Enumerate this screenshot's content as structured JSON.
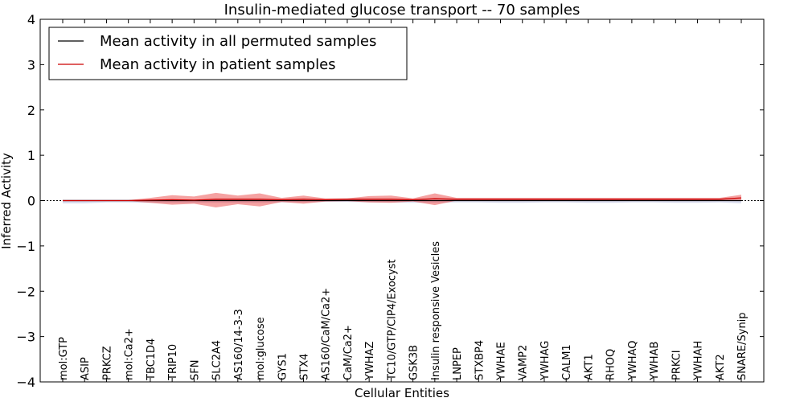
{
  "chart_data": {
    "type": "line",
    "title": "Insulin-mediated glucose transport -- 70 samples",
    "xlabel": "Cellular Entities",
    "ylabel": "Inferred Activity",
    "ylim": [
      -4,
      4
    ],
    "yticks": [
      4,
      3,
      2,
      1,
      0,
      -1,
      -2,
      -3,
      -4
    ],
    "ytick_labels": [
      "4",
      "3",
      "2",
      "1",
      "0",
      "−1",
      "−2",
      "−3",
      "−4"
    ],
    "categories": [
      "mol:GTP",
      "ASIP",
      "PRKCZ",
      "mol:Ca2+",
      "TBC1D4",
      "TRIP10",
      "SFN",
      "SLC2A4",
      "AS160/14-3-3",
      "mol:glucose",
      "GYS1",
      "STX4",
      "AS160/CaM/Ca2+",
      "CaM/Ca2+",
      "YWHAZ",
      "TC10/GTP/CIP4/Exocyst",
      "GSK3B",
      "Insulin responsive Vesicles",
      "LNPEP",
      "STXBP4",
      "YWHAE",
      "VAMP2",
      "YWHAG",
      "CALM1",
      "AKT1",
      "RHOQ",
      "YWHAQ",
      "YWHAB",
      "PRKCI",
      "YWHAH",
      "AKT2",
      "SNARE/Synip"
    ],
    "legend_position": "top-left",
    "series": [
      {
        "name": "Mean activity in all permuted samples",
        "color": "#000000",
        "values": [
          0,
          0,
          0,
          0,
          0,
          0,
          0,
          0,
          0,
          0,
          0,
          0,
          0,
          0,
          0,
          0,
          0,
          0,
          0,
          0,
          0,
          0,
          0,
          0,
          0,
          0,
          0,
          0,
          0,
          0,
          0,
          0
        ],
        "band_upper": [
          0.02,
          0.02,
          0.02,
          0.02,
          0.02,
          0.02,
          0.02,
          0.02,
          0.02,
          0.02,
          0.02,
          0.02,
          0.02,
          0.02,
          0.02,
          0.02,
          0.02,
          0.02,
          0.02,
          0.02,
          0.02,
          0.02,
          0.02,
          0.02,
          0.02,
          0.02,
          0.02,
          0.02,
          0.02,
          0.02,
          0.02,
          0.02
        ],
        "band_lower": [
          -0.06,
          -0.06,
          -0.04,
          -0.04,
          -0.05,
          -0.05,
          -0.05,
          -0.05,
          -0.05,
          -0.05,
          -0.04,
          -0.04,
          -0.03,
          -0.03,
          -0.04,
          -0.04,
          -0.05,
          -0.05,
          -0.04,
          -0.04,
          -0.05,
          -0.05,
          -0.04,
          -0.04,
          -0.05,
          -0.05,
          -0.04,
          -0.04,
          -0.05,
          -0.05,
          -0.04,
          -0.06
        ]
      },
      {
        "name": "Mean activity in patient samples",
        "color": "#cc0000",
        "values": [
          0,
          0,
          0,
          0,
          0.01,
          0.02,
          0.01,
          0.03,
          0.03,
          0.03,
          0.02,
          0.03,
          0.02,
          0.03,
          0.03,
          0.03,
          0.02,
          0.04,
          0.03,
          0.03,
          0.03,
          0.03,
          0.03,
          0.03,
          0.03,
          0.03,
          0.03,
          0.03,
          0.03,
          0.03,
          0.03,
          0.06
        ],
        "band_upper": [
          0.01,
          0.01,
          0.01,
          0.01,
          0.06,
          0.12,
          0.09,
          0.17,
          0.11,
          0.16,
          0.06,
          0.11,
          0.05,
          0.05,
          0.1,
          0.11,
          0.05,
          0.16,
          0.06,
          0.06,
          0.06,
          0.06,
          0.06,
          0.06,
          0.06,
          0.06,
          0.06,
          0.06,
          0.06,
          0.06,
          0.06,
          0.13
        ],
        "band_lower": [
          -0.01,
          -0.01,
          -0.01,
          -0.01,
          -0.05,
          -0.09,
          -0.07,
          -0.15,
          -0.08,
          -0.13,
          -0.03,
          -0.07,
          -0.02,
          -0.01,
          -0.04,
          -0.05,
          -0.02,
          -0.1,
          0,
          0,
          0,
          0,
          0,
          0,
          0,
          0,
          0,
          0,
          0,
          0,
          0,
          0
        ]
      }
    ]
  }
}
